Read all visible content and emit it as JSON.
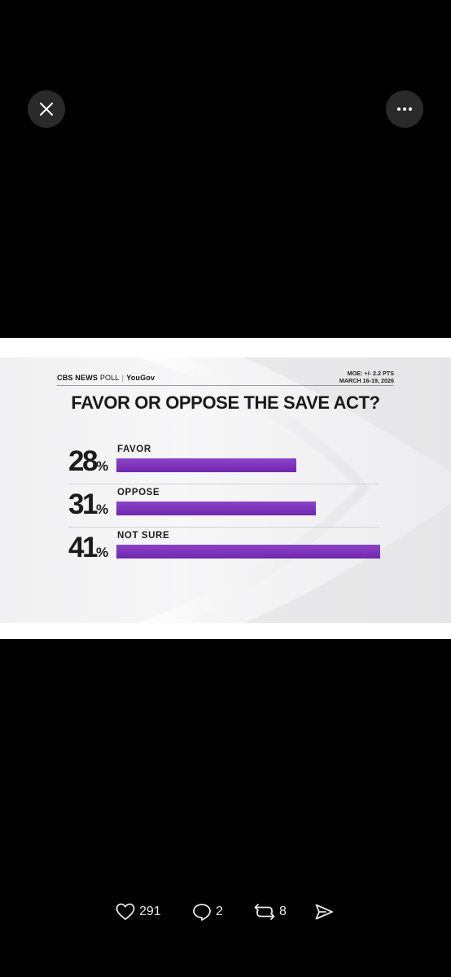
{
  "viewer": {
    "close_icon": "close-icon",
    "more_icon": "more-horizontal-icon"
  },
  "poll": {
    "brand_cbs": "CBS NEWS",
    "brand_poll": "POLL",
    "brand_partner": "YouGov",
    "moe": "MOE: +/- 2.2 PTS",
    "dates": "MARCH 16-19, 2026",
    "question": "FAVOR OR OPPOSE THE SAVE ACT?",
    "percent_sign": "%",
    "bar_color": "#7a2fbb"
  },
  "chart_data": {
    "type": "bar",
    "orientation": "horizontal",
    "title": "FAVOR OR OPPOSE THE SAVE ACT?",
    "categories": [
      "FAVOR",
      "OPPOSE",
      "NOT SURE"
    ],
    "values": [
      28,
      31,
      41
    ],
    "value_labels": [
      "28",
      "31",
      "41"
    ],
    "xlim": [
      0,
      41
    ],
    "grid": false,
    "legend": "none"
  },
  "actions": {
    "like_count": "291",
    "reply_count": "2",
    "repost_count": "8",
    "like_icon": "heart-icon",
    "reply_icon": "reply-icon",
    "repost_icon": "repost-icon",
    "share_icon": "share-icon"
  }
}
